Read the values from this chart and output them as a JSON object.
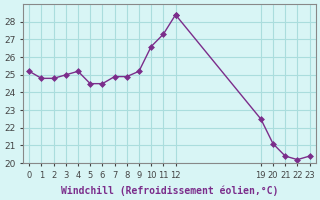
{
  "x_seg1": [
    0,
    1,
    2,
    3,
    4,
    5,
    6,
    7,
    8,
    9,
    10,
    11,
    12
  ],
  "y_seg1": [
    25.2,
    24.8,
    24.8,
    25.0,
    25.2,
    24.5,
    24.5,
    24.9,
    24.9,
    25.2,
    26.6,
    27.3,
    28.4
  ],
  "x_seg2": [
    12,
    19,
    20,
    21,
    22,
    23
  ],
  "y_seg2": [
    28.4,
    22.5,
    21.1,
    20.4,
    20.2,
    20.4
  ],
  "line_color": "#7b2d8b",
  "marker": "D",
  "marker_size": 3,
  "bg_color": "#d8f5f5",
  "grid_color": "#aadddd",
  "xlabel": "Windchill (Refroidissement éolien,°C)",
  "ylim": [
    20,
    29
  ],
  "xlim": [
    -0.5,
    23.5
  ],
  "yticks": [
    20,
    21,
    22,
    23,
    24,
    25,
    26,
    27,
    28
  ],
  "xtick_positions": [
    0,
    1,
    2,
    3,
    4,
    5,
    6,
    7,
    8,
    9,
    10,
    11,
    12,
    19,
    20,
    21,
    22,
    23
  ],
  "xtick_labels": [
    "0",
    "1",
    "2",
    "3",
    "4",
    "5",
    "6",
    "7",
    "8",
    "9",
    "10",
    "11",
    "12",
    "19",
    "20",
    "21",
    "22",
    "23"
  ]
}
